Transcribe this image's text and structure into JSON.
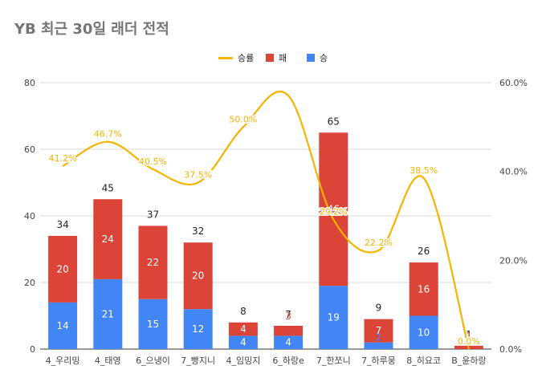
{
  "chart_data": {
    "type": "bar",
    "title": "YB 최근 30일 래더 전적",
    "categories": [
      "4_우리밍",
      "4_태영",
      "6_으냉이",
      "7_빵지니",
      "4_임밍지",
      "6_하랑e",
      "7_한쪼니",
      "7_하루뭉",
      "8_히요코",
      "B_윤하랑"
    ],
    "series": [
      {
        "name": "승",
        "color": "#4285f4",
        "values": [
          14,
          21,
          15,
          12,
          4,
          4,
          19,
          2,
          10,
          0
        ]
      },
      {
        "name": "패",
        "color": "#db4437",
        "values": [
          20,
          24,
          22,
          20,
          4,
          3,
          46,
          7,
          16,
          1
        ]
      },
      {
        "name": "승률",
        "type": "line",
        "axis": "right",
        "color": "#f4b400",
        "values": [
          41.2,
          46.7,
          40.5,
          37.5,
          50.0,
          57.1,
          29.2,
          22.2,
          38.5,
          0.0
        ]
      }
    ],
    "totals": [
      34,
      45,
      37,
      32,
      8,
      7,
      65,
      9,
      26,
      1
    ],
    "win_rate_labels": [
      "41.2%",
      "46.7%",
      "40.5%",
      "37.5%",
      "50.0%",
      "",
      "29.2%",
      "22.2%",
      "38.5%",
      "0.0%"
    ],
    "win_labels": [
      "14",
      "21",
      "15",
      "12",
      "4",
      "4",
      "19",
      "2",
      "10",
      ""
    ],
    "loss_labels": [
      "20",
      "24",
      "22",
      "20",
      "4",
      "3",
      "46",
      "7",
      "16",
      "1"
    ],
    "ylim": [
      0,
      80
    ],
    "yticks": [
      0,
      20,
      40,
      60,
      80
    ],
    "y2lim": [
      0,
      60
    ],
    "y2ticks": [
      0,
      20,
      40,
      60
    ],
    "y2ticklabels": [
      "0.0%",
      "20.0%",
      "40.0%",
      "60.0%"
    ],
    "legend": [
      "승률",
      "패",
      "승"
    ],
    "legend_position": "top-center"
  }
}
